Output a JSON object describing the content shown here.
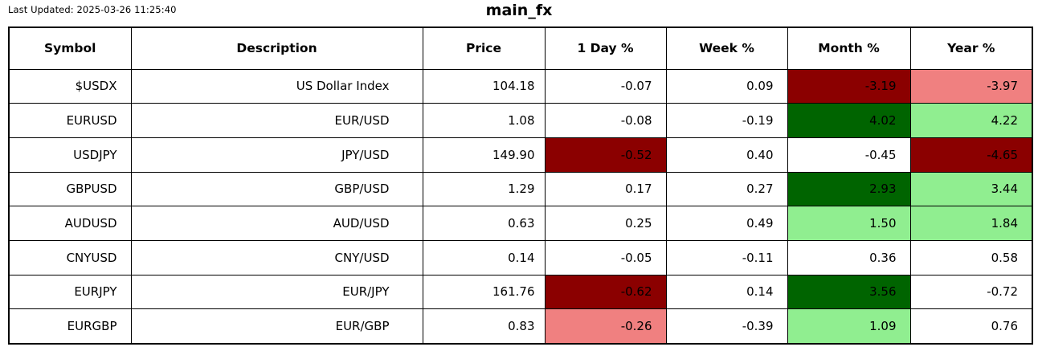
{
  "meta": {
    "last_updated_label": "Last Updated: 2025-03-26 11:25:40",
    "title": "main_fx"
  },
  "colors": {
    "neutral": "#FFFFFF",
    "strong_negative": "#8B0000",
    "mild_negative": "#F08080",
    "strong_positive": "#006400",
    "mild_positive": "#90EE90",
    "border": "#000000",
    "text": "#000000"
  },
  "chart_data": {
    "type": "table",
    "title": "main_fx",
    "last_updated": "2025-03-26 11:25:40",
    "columns": [
      "Symbol",
      "Description",
      "Price",
      "1 Day %",
      "Week %",
      "Month %",
      "Year %"
    ],
    "column_keys": [
      "symbol",
      "description",
      "price",
      "day-pct",
      "week-pct",
      "month-pct",
      "year-pct"
    ],
    "rows": [
      {
        "cells": [
          {
            "text": "$USDX",
            "bg": "neutral"
          },
          {
            "text": "US Dollar Index",
            "bg": "neutral"
          },
          {
            "text": "104.18",
            "bg": "neutral"
          },
          {
            "text": "-0.07",
            "bg": "neutral"
          },
          {
            "text": "0.09",
            "bg": "neutral"
          },
          {
            "text": "-3.19",
            "bg": "strong_negative"
          },
          {
            "text": "-3.97",
            "bg": "mild_negative"
          }
        ]
      },
      {
        "cells": [
          {
            "text": "EURUSD",
            "bg": "neutral"
          },
          {
            "text": "EUR/USD",
            "bg": "neutral"
          },
          {
            "text": "1.08",
            "bg": "neutral"
          },
          {
            "text": "-0.08",
            "bg": "neutral"
          },
          {
            "text": "-0.19",
            "bg": "neutral"
          },
          {
            "text": "4.02",
            "bg": "strong_positive"
          },
          {
            "text": "4.22",
            "bg": "mild_positive"
          }
        ]
      },
      {
        "cells": [
          {
            "text": "USDJPY",
            "bg": "neutral"
          },
          {
            "text": "JPY/USD",
            "bg": "neutral"
          },
          {
            "text": "149.90",
            "bg": "neutral"
          },
          {
            "text": "-0.52",
            "bg": "strong_negative"
          },
          {
            "text": "0.40",
            "bg": "neutral"
          },
          {
            "text": "-0.45",
            "bg": "neutral"
          },
          {
            "text": "-4.65",
            "bg": "strong_negative"
          }
        ]
      },
      {
        "cells": [
          {
            "text": "GBPUSD",
            "bg": "neutral"
          },
          {
            "text": "GBP/USD",
            "bg": "neutral"
          },
          {
            "text": "1.29",
            "bg": "neutral"
          },
          {
            "text": "0.17",
            "bg": "neutral"
          },
          {
            "text": "0.27",
            "bg": "neutral"
          },
          {
            "text": "2.93",
            "bg": "strong_positive"
          },
          {
            "text": "3.44",
            "bg": "mild_positive"
          }
        ]
      },
      {
        "cells": [
          {
            "text": "AUDUSD",
            "bg": "neutral"
          },
          {
            "text": "AUD/USD",
            "bg": "neutral"
          },
          {
            "text": "0.63",
            "bg": "neutral"
          },
          {
            "text": "0.25",
            "bg": "neutral"
          },
          {
            "text": "0.49",
            "bg": "neutral"
          },
          {
            "text": "1.50",
            "bg": "mild_positive"
          },
          {
            "text": "1.84",
            "bg": "mild_positive"
          }
        ]
      },
      {
        "cells": [
          {
            "text": "CNYUSD",
            "bg": "neutral"
          },
          {
            "text": "CNY/USD",
            "bg": "neutral"
          },
          {
            "text": "0.14",
            "bg": "neutral"
          },
          {
            "text": "-0.05",
            "bg": "neutral"
          },
          {
            "text": "-0.11",
            "bg": "neutral"
          },
          {
            "text": "0.36",
            "bg": "neutral"
          },
          {
            "text": "0.58",
            "bg": "neutral"
          }
        ]
      },
      {
        "cells": [
          {
            "text": "EURJPY",
            "bg": "neutral"
          },
          {
            "text": "EUR/JPY",
            "bg": "neutral"
          },
          {
            "text": "161.76",
            "bg": "neutral"
          },
          {
            "text": "-0.62",
            "bg": "strong_negative"
          },
          {
            "text": "0.14",
            "bg": "neutral"
          },
          {
            "text": "3.56",
            "bg": "strong_positive"
          },
          {
            "text": "-0.72",
            "bg": "neutral"
          }
        ]
      },
      {
        "cells": [
          {
            "text": "EURGBP",
            "bg": "neutral"
          },
          {
            "text": "EUR/GBP",
            "bg": "neutral"
          },
          {
            "text": "0.83",
            "bg": "neutral"
          },
          {
            "text": "-0.26",
            "bg": "mild_negative"
          },
          {
            "text": "-0.39",
            "bg": "neutral"
          },
          {
            "text": "1.09",
            "bg": "mild_positive"
          },
          {
            "text": "0.76",
            "bg": "neutral"
          }
        ]
      }
    ]
  }
}
